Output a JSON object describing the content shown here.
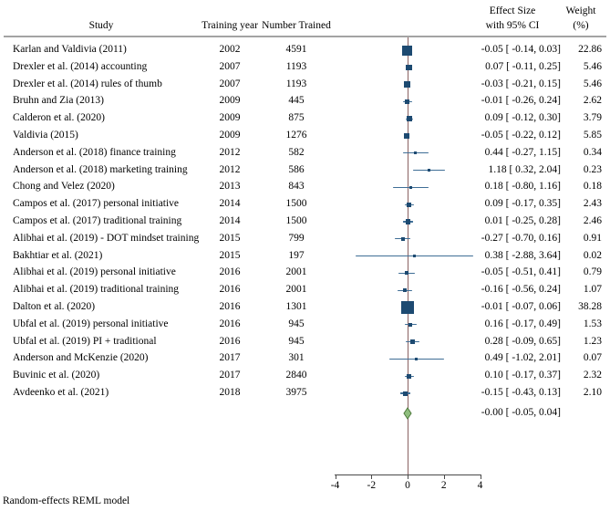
{
  "chart_data": {
    "type": "scatter",
    "subtype": "forest-plot",
    "columns": {
      "study": "Study",
      "training_year": "Training year",
      "number_trained": "Number Trained",
      "effect_line1": "Effect Size",
      "effect_line2": "with 95% CI",
      "weight_line1": "Weight",
      "weight_line2": "(%)"
    },
    "studies": [
      {
        "label": "Karlan and Valdivia (2011)",
        "year": "2002",
        "n": "4591",
        "es": -0.05,
        "lo": -0.14,
        "hi": 0.03,
        "es_text": "-0.05 [ -0.14, 0.03]",
        "weight": "22.86",
        "weight_num": 22.86
      },
      {
        "label": "Drexler et al. (2014) accounting",
        "year": "2007",
        "n": "1193",
        "es": 0.07,
        "lo": -0.11,
        "hi": 0.25,
        "es_text": "0.07 [ -0.11, 0.25]",
        "weight": "5.46",
        "weight_num": 5.46
      },
      {
        "label": "Drexler et al. (2014) rules of thumb",
        "year": "2007",
        "n": "1193",
        "es": -0.03,
        "lo": -0.21,
        "hi": 0.15,
        "es_text": "-0.03 [ -0.21, 0.15]",
        "weight": "5.46",
        "weight_num": 5.46
      },
      {
        "label": "Bruhn and Zia (2013)",
        "year": "2009",
        "n": "445",
        "es": -0.01,
        "lo": -0.26,
        "hi": 0.24,
        "es_text": "-0.01 [ -0.26, 0.24]",
        "weight": "2.62",
        "weight_num": 2.62
      },
      {
        "label": "Calderon et al. (2020)",
        "year": "2009",
        "n": "875",
        "es": 0.09,
        "lo": -0.12,
        "hi": 0.3,
        "es_text": "0.09 [ -0.12, 0.30]",
        "weight": "3.79",
        "weight_num": 3.79
      },
      {
        "label": "Valdivia (2015)",
        "year": "2009",
        "n": "1276",
        "es": -0.05,
        "lo": -0.22,
        "hi": 0.12,
        "es_text": "-0.05 [ -0.22, 0.12]",
        "weight": "5.85",
        "weight_num": 5.85
      },
      {
        "label": "Anderson et al. (2018) finance training",
        "year": "2012",
        "n": "582",
        "es": 0.44,
        "lo": -0.27,
        "hi": 1.15,
        "es_text": "0.44 [ -0.27, 1.15]",
        "weight": "0.34",
        "weight_num": 0.34
      },
      {
        "label": "Anderson et al. (2018) marketing training",
        "year": "2012",
        "n": "586",
        "es": 1.18,
        "lo": 0.32,
        "hi": 2.04,
        "es_text": "1.18 [ 0.32, 2.04]",
        "weight": "0.23",
        "weight_num": 0.23
      },
      {
        "label": "Chong and Velez (2020)",
        "year": "2013",
        "n": "843",
        "es": 0.18,
        "lo": -0.8,
        "hi": 1.16,
        "es_text": "0.18 [ -0.80, 1.16]",
        "weight": "0.18",
        "weight_num": 0.18
      },
      {
        "label": "Campos et al. (2017) personal initiative",
        "year": "2014",
        "n": "1500",
        "es": 0.09,
        "lo": -0.17,
        "hi": 0.35,
        "es_text": "0.09 [ -0.17, 0.35]",
        "weight": "2.43",
        "weight_num": 2.43
      },
      {
        "label": "Campos et al. (2017) traditional training",
        "year": "2014",
        "n": "1500",
        "es": 0.01,
        "lo": -0.25,
        "hi": 0.28,
        "es_text": "0.01 [ -0.25, 0.28]",
        "weight": "2.46",
        "weight_num": 2.46
      },
      {
        "label": "Alibhai et al. (2019) - DOT mindset training",
        "year": "2015",
        "n": "799",
        "es": -0.27,
        "lo": -0.7,
        "hi": 0.16,
        "es_text": "-0.27 [ -0.70, 0.16]",
        "weight": "0.91",
        "weight_num": 0.91
      },
      {
        "label": "Bakhtiar et al. (2021)",
        "year": "2015",
        "n": "197",
        "es": 0.38,
        "lo": -2.88,
        "hi": 3.64,
        "es_text": "0.38 [ -2.88, 3.64]",
        "weight": "0.02",
        "weight_num": 0.02
      },
      {
        "label": "Alibhai et al. (2019) personal initiative",
        "year": "2016",
        "n": "2001",
        "es": -0.05,
        "lo": -0.51,
        "hi": 0.41,
        "es_text": "-0.05 [ -0.51, 0.41]",
        "weight": "0.79",
        "weight_num": 0.79
      },
      {
        "label": "Alibhai et al. (2019) traditional training",
        "year": "2016",
        "n": "2001",
        "es": -0.16,
        "lo": -0.56,
        "hi": 0.24,
        "es_text": "-0.16 [ -0.56, 0.24]",
        "weight": "1.07",
        "weight_num": 1.07
      },
      {
        "label": "Dalton et al. (2020)",
        "year": "2016",
        "n": "1301",
        "es": -0.01,
        "lo": -0.07,
        "hi": 0.06,
        "es_text": "-0.01 [ -0.07, 0.06]",
        "weight": "38.28",
        "weight_num": 38.28
      },
      {
        "label": "Ubfal et al. (2019) personal initiative",
        "year": "2016",
        "n": "945",
        "es": 0.16,
        "lo": -0.17,
        "hi": 0.49,
        "es_text": "0.16 [ -0.17, 0.49]",
        "weight": "1.53",
        "weight_num": 1.53
      },
      {
        "label": "Ubfal et al. (2019) PI + traditional",
        "year": "2016",
        "n": "945",
        "es": 0.28,
        "lo": -0.09,
        "hi": 0.65,
        "es_text": "0.28 [ -0.09, 0.65]",
        "weight": "1.23",
        "weight_num": 1.23
      },
      {
        "label": "Anderson and McKenzie (2020)",
        "year": "2017",
        "n": "301",
        "es": 0.49,
        "lo": -1.02,
        "hi": 2.01,
        "es_text": "0.49 [ -1.02, 2.01]",
        "weight": "0.07",
        "weight_num": 0.07
      },
      {
        "label": "Buvinic et al. (2020)",
        "year": "2017",
        "n": "2840",
        "es": 0.1,
        "lo": -0.17,
        "hi": 0.37,
        "es_text": "0.10 [ -0.17, 0.37]",
        "weight": "2.32",
        "weight_num": 2.32
      },
      {
        "label": "Avdeenko et al. (2021)",
        "year": "2018",
        "n": "3975",
        "es": -0.15,
        "lo": -0.43,
        "hi": 0.13,
        "es_text": "-0.15 [ -0.43, 0.13]",
        "weight": "2.10",
        "weight_num": 2.1
      }
    ],
    "overall": {
      "es": -0.0,
      "lo": -0.05,
      "hi": 0.04,
      "es_text": "-0.00 [ -0.05, 0.04]"
    },
    "x_axis": {
      "ticks": [
        -4,
        -2,
        0,
        2,
        4
      ],
      "tick_labels": [
        "-4",
        "-2",
        "0",
        "2",
        "4"
      ],
      "range": [
        -4,
        4
      ],
      "reference_value": 0
    },
    "footnote": "Random-effects REML model"
  },
  "colors": {
    "marker": "#1d4a71",
    "ci_line": "#3f6e96",
    "ref_line": "#8a6262",
    "axis": "#4a4a4a",
    "header_rule": "#a3a3a3",
    "overall_fill": "#8fbe7e",
    "overall_stroke": "#4f7a3c",
    "text": "#000000"
  }
}
